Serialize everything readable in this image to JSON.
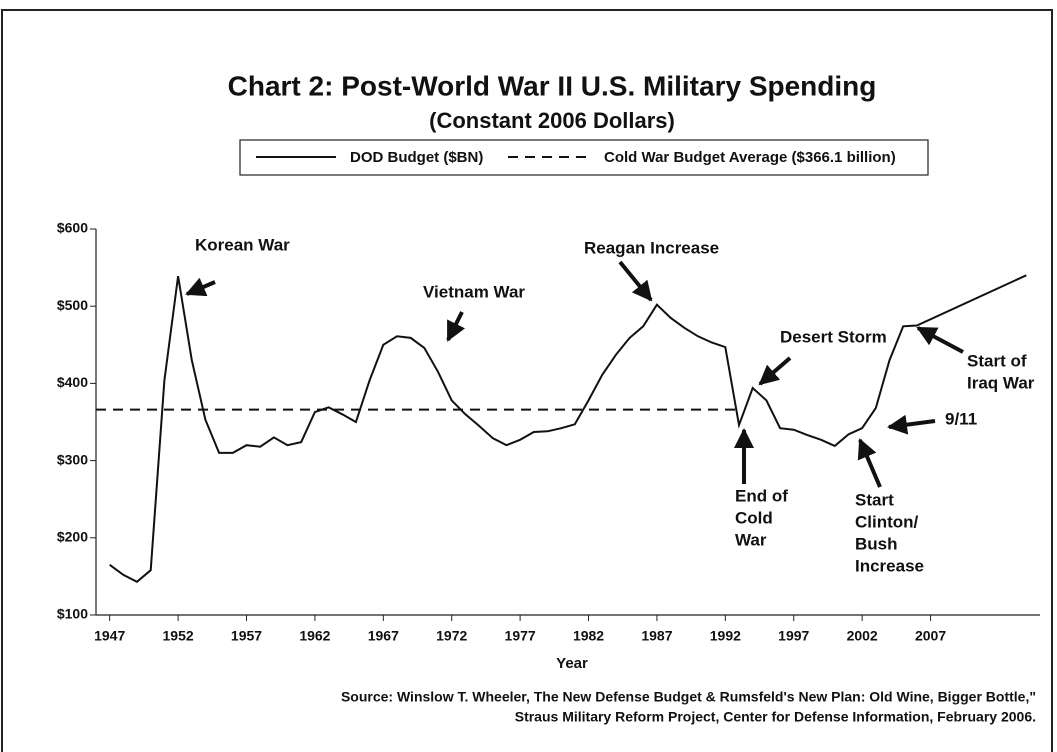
{
  "chart_data": {
    "type": "line",
    "title": "Chart 2: Post-World War II U.S. Military Spending",
    "subtitle": "(Constant 2006 Dollars)",
    "x_label": "Year",
    "x": [
      1947,
      1948,
      1949,
      1950,
      1951,
      1952,
      1953,
      1954,
      1955,
      1956,
      1957,
      1958,
      1959,
      1960,
      1961,
      1962,
      1963,
      1964,
      1965,
      1966,
      1967,
      1968,
      1969,
      1970,
      1971,
      1972,
      1973,
      1974,
      1975,
      1976,
      1977,
      1978,
      1979,
      1980,
      1981,
      1982,
      1983,
      1984,
      1985,
      1986,
      1987,
      1988,
      1989,
      1990,
      1991,
      1992,
      1993,
      1994,
      1995,
      1996,
      1997,
      1998,
      1999,
      2000,
      2001,
      2002,
      2003,
      2004,
      2005,
      2006,
      2014
    ],
    "series": [
      {
        "name": "DOD Budget ($BN)",
        "color": "#111111",
        "values": [
          165,
          152,
          143,
          158,
          404,
          539,
          430,
          353,
          310,
          310,
          320,
          318,
          330,
          320,
          324,
          363,
          369,
          360,
          350,
          404,
          450,
          461,
          459,
          446,
          415,
          378,
          360,
          345,
          329,
          320,
          327,
          337,
          338,
          342,
          347,
          378,
          411,
          437,
          459,
          474,
          502,
          485,
          472,
          461,
          453,
          447,
          346,
          394,
          378,
          342,
          340,
          333,
          327,
          319,
          334,
          342,
          368,
          430,
          474,
          475,
          540
        ]
      }
    ],
    "average": {
      "name": "Cold War Budget Average ($366.1 billion)",
      "value": 366.1,
      "x": [
        1946,
        1993
      ]
    },
    "xlim": [
      1946,
      2015
    ],
    "ylim": [
      100,
      600
    ],
    "xticks": [
      1947,
      1952,
      1957,
      1962,
      1967,
      1972,
      1977,
      1982,
      1987,
      1992,
      1997,
      2002,
      2007
    ],
    "yticks": [
      {
        "value": 100,
        "label": "$100"
      },
      {
        "value": 200,
        "label": "$200"
      },
      {
        "value": 300,
        "label": "$300"
      },
      {
        "value": 400,
        "label": "$400"
      },
      {
        "value": 500,
        "label": "$500"
      },
      {
        "value": 600,
        "label": "$600"
      }
    ],
    "annotations": [
      {
        "text": [
          "Korean War"
        ]
      },
      {
        "text": [
          "Vietnam War"
        ]
      },
      {
        "text": [
          "Reagan Increase"
        ]
      },
      {
        "text": [
          "Desert Storm"
        ]
      },
      {
        "text": [
          "End of",
          "Cold",
          "War"
        ]
      },
      {
        "text": [
          "Start",
          "Clinton/",
          "Bush",
          "Increase"
        ]
      },
      {
        "text": [
          "9/11"
        ]
      },
      {
        "text": [
          "Start of",
          "Iraq War"
        ]
      }
    ],
    "source": [
      "Source: Winslow T. Wheeler, The New Defense Budget & Rumsfeld's New Plan: Old Wine, Bigger Bottle,\"",
      "Straus Military Reform Project, Center for Defense Information, February 2006."
    ]
  }
}
